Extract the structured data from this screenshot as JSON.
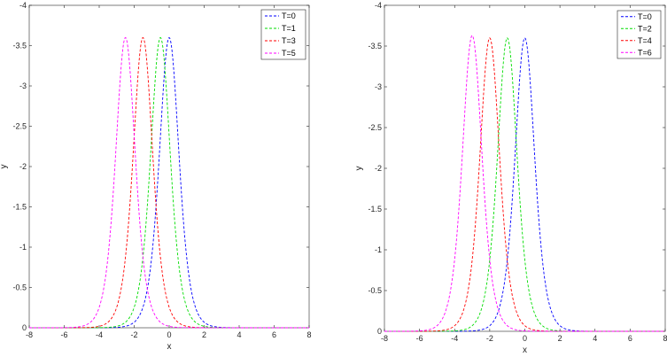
{
  "chart_data": [
    {
      "type": "line",
      "title": "",
      "xlabel": "x",
      "ylabel": "y",
      "xlim": [
        -8,
        8
      ],
      "ylim": [
        0,
        -4
      ],
      "y_direction": "reversed",
      "grid": false,
      "legend_position": "top-right",
      "xticks": [
        "-8",
        "-6",
        "-4",
        "-2",
        "0",
        "2",
        "4",
        "6",
        "8"
      ],
      "yticks": [
        "0",
        "-0.5",
        "-1",
        "-1.5",
        "-2",
        "-2.5",
        "-3",
        "-3.5",
        "-4"
      ],
      "series": [
        {
          "name": "T=0",
          "color": "#0000ff",
          "amplitude": -3.6,
          "center": 0.0,
          "width": 0.75
        },
        {
          "name": "T=1",
          "color": "#00dd00",
          "amplitude": -3.6,
          "center": -0.5,
          "width": 0.75
        },
        {
          "name": "T=3",
          "color": "#ff0000",
          "amplitude": -3.6,
          "center": -1.5,
          "width": 0.75
        },
        {
          "name": "T=5",
          "color": "#ff00ff",
          "amplitude": -3.6,
          "center": -2.5,
          "width": 0.75
        }
      ]
    },
    {
      "type": "line",
      "title": "",
      "xlabel": "x",
      "ylabel": "y",
      "xlim": [
        -8,
        8
      ],
      "ylim": [
        0,
        -4
      ],
      "y_direction": "reversed",
      "grid": false,
      "legend_position": "top-right",
      "xticks": [
        "-8",
        "-6",
        "-4",
        "-2",
        "0",
        "2",
        "4",
        "6",
        "8"
      ],
      "yticks": [
        "0",
        "-0.5",
        "-1",
        "-1.5",
        "-2",
        "-2.5",
        "-3",
        "-3.5",
        "-4"
      ],
      "series": [
        {
          "name": "T=0",
          "color": "#0000ff",
          "amplitude": -3.6,
          "center": 0.0,
          "width": 0.75
        },
        {
          "name": "T=2",
          "color": "#00dd00",
          "amplitude": -3.6,
          "center": -1.0,
          "width": 0.75
        },
        {
          "name": "T=4",
          "color": "#ff0000",
          "amplitude": -3.6,
          "center": -2.0,
          "width": 0.75
        },
        {
          "name": "T=6",
          "color": "#ff00ff",
          "amplitude": -3.63,
          "center": -3.0,
          "width": 0.75
        }
      ]
    }
  ]
}
